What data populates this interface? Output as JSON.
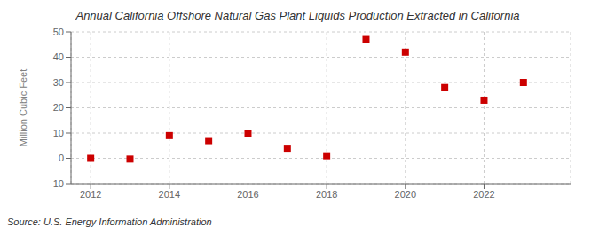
{
  "chart_data": {
    "type": "scatter",
    "title": "Annual California Offshore Natural Gas Plant Liquids Production Extracted in California",
    "ylabel": "Million Cubic Feet",
    "annotations": [
      "Source: U.S. Energy Information Administration"
    ],
    "x": [
      2012,
      2013,
      2014,
      2015,
      2016,
      2017,
      2018,
      2019,
      2020,
      2021,
      2022,
      2023
    ],
    "values": [
      0,
      -0.3,
      9,
      7,
      10,
      4,
      1,
      47,
      42,
      28,
      23,
      30
    ],
    "xlim": [
      2011.5,
      2024.2
    ],
    "ylim": [
      -10,
      50
    ],
    "xticks": [
      2012,
      2014,
      2016,
      2018,
      2020,
      2022
    ],
    "yticks": [
      -10,
      0,
      10,
      20,
      30,
      40,
      50
    ],
    "color": "#cc0000",
    "marker": "square",
    "grid": true
  }
}
